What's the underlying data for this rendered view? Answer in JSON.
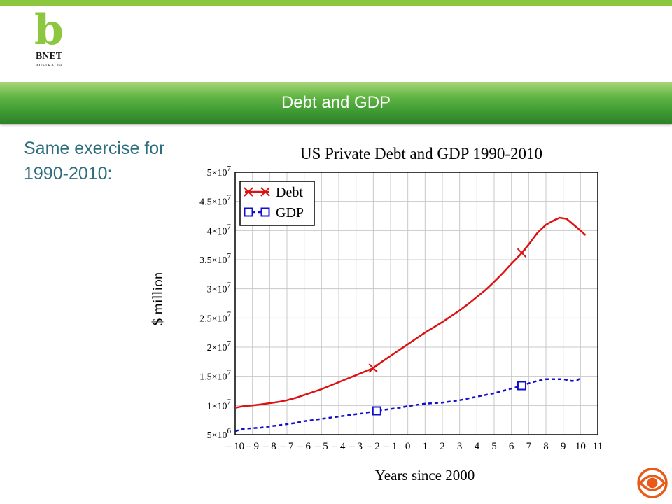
{
  "logo": {
    "letter": "b",
    "name": "BNET",
    "region": "AUSTRALIA"
  },
  "banner": {
    "title": "Debt and GDP"
  },
  "subtitle": "Same exercise for 1990-2010:",
  "colors": {
    "brand_green": "#8dc63f",
    "debt": "#dd1111",
    "gdp": "#1010cc",
    "text_teal": "#2e6e7e"
  },
  "cbs_logo": "cbs-eye-icon",
  "chart_data": {
    "type": "line",
    "title": "US Private Debt and GDP 1990-2010",
    "xlabel": "Years since 2000",
    "ylabel": "$ million",
    "xlim": [
      -10,
      11
    ],
    "ylim": [
      5000000,
      50000000
    ],
    "grid": true,
    "legend": "top-left",
    "x_ticks": [
      {
        "value": -10,
        "label": "– 10"
      },
      {
        "value": -9,
        "label": "– 9"
      },
      {
        "value": -8,
        "label": "– 8"
      },
      {
        "value": -7,
        "label": "– 7"
      },
      {
        "value": -6,
        "label": "– 6"
      },
      {
        "value": -5,
        "label": "– 5"
      },
      {
        "value": -4,
        "label": "– 4"
      },
      {
        "value": -3,
        "label": "– 3"
      },
      {
        "value": -2,
        "label": "– 2"
      },
      {
        "value": -1,
        "label": "– 1"
      },
      {
        "value": 0,
        "label": "0"
      },
      {
        "value": 1,
        "label": "1"
      },
      {
        "value": 2,
        "label": "2"
      },
      {
        "value": 3,
        "label": "3"
      },
      {
        "value": 4,
        "label": "4"
      },
      {
        "value": 5,
        "label": "5"
      },
      {
        "value": 6,
        "label": "6"
      },
      {
        "value": 7,
        "label": "7"
      },
      {
        "value": 8,
        "label": "8"
      },
      {
        "value": 9,
        "label": "9"
      },
      {
        "value": 10,
        "label": "10"
      },
      {
        "value": 11,
        "label": "11"
      }
    ],
    "y_ticks": [
      {
        "value": 5000000,
        "mant": "5",
        "exp": "6"
      },
      {
        "value": 10000000,
        "mant": "1",
        "exp": "7"
      },
      {
        "value": 15000000,
        "mant": "1.5",
        "exp": "7"
      },
      {
        "value": 20000000,
        "mant": "2",
        "exp": "7"
      },
      {
        "value": 25000000,
        "mant": "2.5",
        "exp": "7"
      },
      {
        "value": 30000000,
        "mant": "3",
        "exp": "7"
      },
      {
        "value": 35000000,
        "mant": "3.5",
        "exp": "7"
      },
      {
        "value": 40000000,
        "mant": "4",
        "exp": "7"
      },
      {
        "value": 45000000,
        "mant": "4.5",
        "exp": "7"
      },
      {
        "value": 50000000,
        "mant": "5",
        "exp": "7"
      }
    ],
    "series": [
      {
        "name": "Debt",
        "color": "#dd1111",
        "style": "solid",
        "marker": "x",
        "markers_at": [
          -2,
          6.6
        ],
        "points": [
          [
            -10,
            9600000
          ],
          [
            -9.5,
            9900000
          ],
          [
            -9,
            10000000
          ],
          [
            -8.5,
            10200000
          ],
          [
            -8,
            10400000
          ],
          [
            -7.5,
            10600000
          ],
          [
            -7,
            10900000
          ],
          [
            -6.5,
            11300000
          ],
          [
            -6,
            11800000
          ],
          [
            -5.5,
            12300000
          ],
          [
            -5,
            12800000
          ],
          [
            -4.5,
            13400000
          ],
          [
            -4,
            14000000
          ],
          [
            -3.5,
            14600000
          ],
          [
            -3,
            15200000
          ],
          [
            -2.5,
            15800000
          ],
          [
            -2,
            16400000
          ],
          [
            -1.5,
            17500000
          ],
          [
            -1,
            18500000
          ],
          [
            -0.5,
            19500000
          ],
          [
            0,
            20500000
          ],
          [
            0.5,
            21500000
          ],
          [
            1,
            22500000
          ],
          [
            1.5,
            23400000
          ],
          [
            2,
            24300000
          ],
          [
            2.5,
            25300000
          ],
          [
            3,
            26300000
          ],
          [
            3.5,
            27400000
          ],
          [
            4,
            28600000
          ],
          [
            4.5,
            29800000
          ],
          [
            5,
            31200000
          ],
          [
            5.5,
            32700000
          ],
          [
            6,
            34300000
          ],
          [
            6.5,
            35800000
          ],
          [
            7,
            37600000
          ],
          [
            7.5,
            39600000
          ],
          [
            8,
            41000000
          ],
          [
            8.5,
            41800000
          ],
          [
            8.8,
            42200000
          ],
          [
            9.2,
            42000000
          ],
          [
            9.6,
            41000000
          ],
          [
            10,
            40000000
          ],
          [
            10.3,
            39200000
          ]
        ]
      },
      {
        "name": "GDP",
        "color": "#1010cc",
        "style": "dashed",
        "marker": "square",
        "markers_at": [
          -1.8,
          6.6
        ],
        "points": [
          [
            -10,
            5600000
          ],
          [
            -9.5,
            6000000
          ],
          [
            -9,
            6100000
          ],
          [
            -8.5,
            6200000
          ],
          [
            -8,
            6400000
          ],
          [
            -7.5,
            6600000
          ],
          [
            -7,
            6800000
          ],
          [
            -6.5,
            7000000
          ],
          [
            -6,
            7300000
          ],
          [
            -5.5,
            7500000
          ],
          [
            -5,
            7700000
          ],
          [
            -4.5,
            7900000
          ],
          [
            -4,
            8100000
          ],
          [
            -3.5,
            8300000
          ],
          [
            -3,
            8500000
          ],
          [
            -2.5,
            8700000
          ],
          [
            -2,
            9000000
          ],
          [
            -1.5,
            9200000
          ],
          [
            -1,
            9400000
          ],
          [
            -0.5,
            9600000
          ],
          [
            0,
            9900000
          ],
          [
            0.5,
            10100000
          ],
          [
            1,
            10300000
          ],
          [
            1.5,
            10400000
          ],
          [
            2,
            10500000
          ],
          [
            2.5,
            10700000
          ],
          [
            3,
            10900000
          ],
          [
            3.5,
            11200000
          ],
          [
            4,
            11500000
          ],
          [
            4.5,
            11800000
          ],
          [
            5,
            12100000
          ],
          [
            5.5,
            12500000
          ],
          [
            6,
            12900000
          ],
          [
            6.5,
            13300000
          ],
          [
            7,
            13800000
          ],
          [
            7.5,
            14200000
          ],
          [
            8,
            14500000
          ],
          [
            8.5,
            14500000
          ],
          [
            9,
            14500000
          ],
          [
            9.5,
            14200000
          ],
          [
            9.8,
            14300000
          ],
          [
            10,
            14700000
          ]
        ]
      }
    ]
  }
}
